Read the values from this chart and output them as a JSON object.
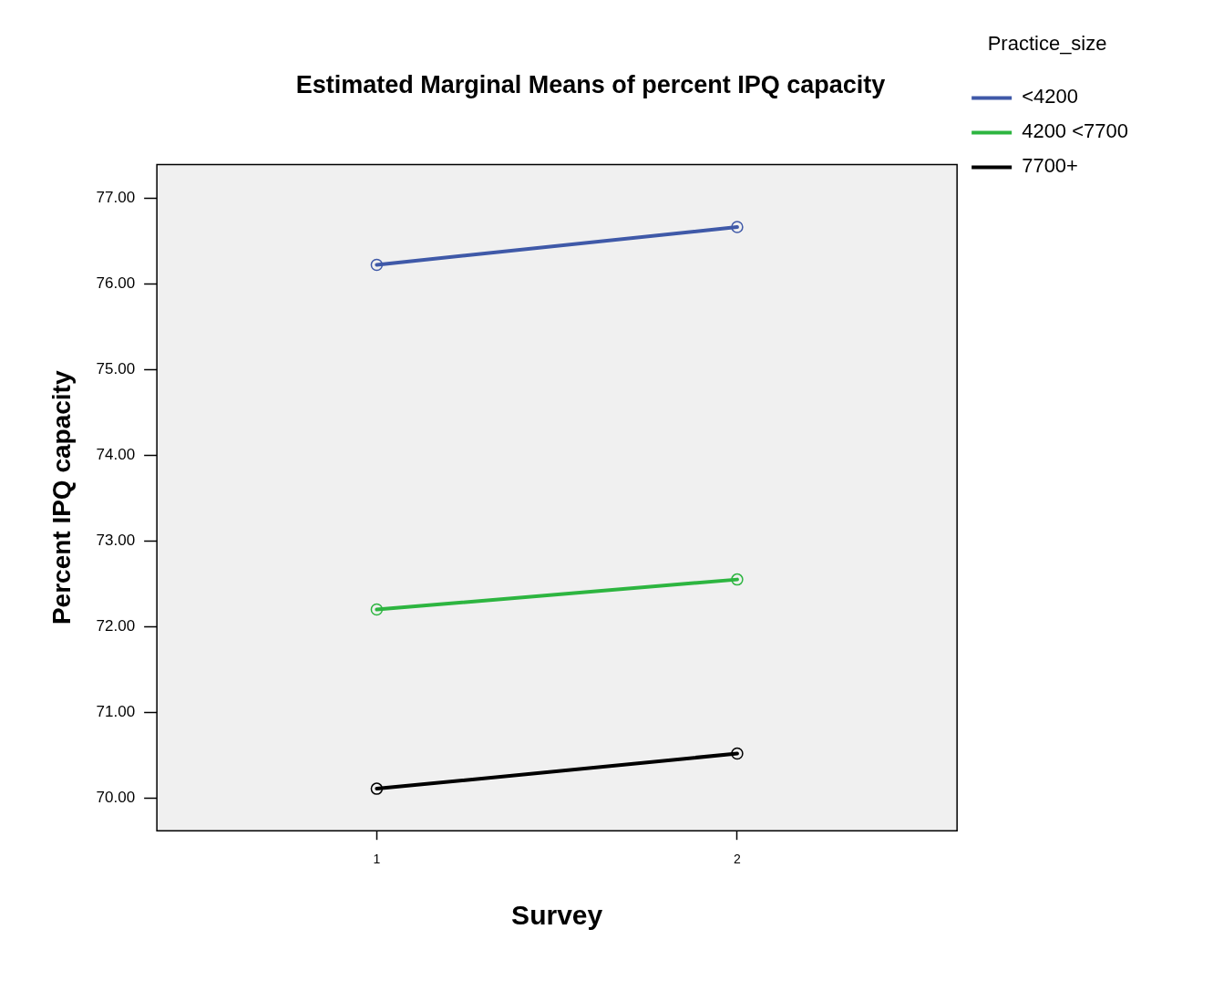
{
  "chart_data": {
    "type": "line",
    "title": "Estimated Marginal Means of percent IPQ capacity",
    "xlabel": "Survey",
    "ylabel": "Percent IPQ capacity",
    "legend_title": "Practice_size",
    "x": [
      1,
      2
    ],
    "xlim": [
      0.39,
      2.61
    ],
    "xticks": [
      1,
      2
    ],
    "ylim": [
      69.62,
      77.39
    ],
    "yticks": [
      {
        "value": 70,
        "label": "70.00"
      },
      {
        "value": 71,
        "label": "71.00"
      },
      {
        "value": 72,
        "label": "72.00"
      },
      {
        "value": 73,
        "label": "73.00"
      },
      {
        "value": 74,
        "label": "74.00"
      },
      {
        "value": 75,
        "label": "75.00"
      },
      {
        "value": 76,
        "label": "76.00"
      },
      {
        "value": 77,
        "label": "77.00"
      }
    ],
    "series": [
      {
        "name": "<4200",
        "color": "#3f59a8",
        "values": [
          76.22,
          76.66
        ]
      },
      {
        "name": "4200 <7700",
        "color": "#2db540",
        "values": [
          72.2,
          72.55
        ]
      },
      {
        "name": "7700+",
        "color": "#000000",
        "values": [
          70.11,
          70.52
        ]
      }
    ],
    "grid": false,
    "legend": "top right",
    "marker": "circle",
    "line_style": "solid"
  }
}
